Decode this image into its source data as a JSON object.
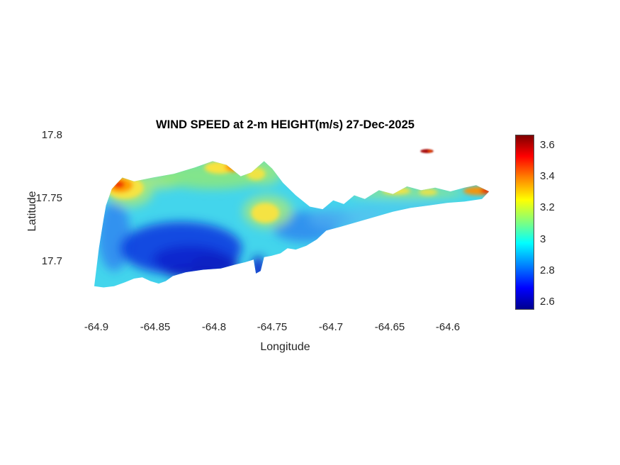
{
  "figure": {
    "background": "#ffffff"
  },
  "chart_data": {
    "type": "heatmap",
    "title": "WIND SPEED at 2-m HEIGHT(m/s) 27-Dec-2025",
    "xlabel": "Longitude",
    "ylabel": "Latitude",
    "units": "m/s",
    "grid": false,
    "xlim": [
      -64.925,
      -64.553
    ],
    "ylim": [
      17.654,
      17.8
    ],
    "xtick_labels": [
      "-64.9",
      "-64.85",
      "-64.8",
      "-64.75",
      "-64.7",
      "-64.65",
      "-64.6"
    ],
    "ytick_labels": [
      "17.8",
      "17.75",
      "17.7"
    ],
    "colorbar": {
      "colormap": "jet",
      "range": [
        2.55,
        3.67
      ],
      "ticks": [
        "3.6",
        "3.4",
        "3.2",
        "3",
        "2.8",
        "2.6"
      ],
      "gradient_stops": [
        "#7f0000 0%",
        "#ff0000 12%",
        "#ff7f00 24%",
        "#ffff00 37%",
        "#7fff7f 50%",
        "#00ffff 62%",
        "#0080ff 75%",
        "#0000ff 88%",
        "#00008f 100%"
      ]
    },
    "map": {
      "base_color": "#43d5ec",
      "base_value": 3.0,
      "island_outline": [
        [
          -64.902,
          17.68
        ],
        [
          -64.898,
          17.71
        ],
        [
          -64.894,
          17.733
        ],
        [
          -64.892,
          17.744
        ],
        [
          -64.887,
          17.757
        ],
        [
          -64.878,
          17.766
        ],
        [
          -64.868,
          17.763
        ],
        [
          -64.852,
          17.766
        ],
        [
          -64.834,
          17.769
        ],
        [
          -64.816,
          17.774
        ],
        [
          -64.801,
          17.779
        ],
        [
          -64.789,
          17.776
        ],
        [
          -64.777,
          17.767
        ],
        [
          -64.768,
          17.77
        ],
        [
          -64.757,
          17.779
        ],
        [
          -64.75,
          17.773
        ],
        [
          -64.741,
          17.762
        ],
        [
          -64.73,
          17.752
        ],
        [
          -64.718,
          17.743
        ],
        [
          -64.707,
          17.741
        ],
        [
          -64.698,
          17.748
        ],
        [
          -64.689,
          17.745
        ],
        [
          -64.68,
          17.752
        ],
        [
          -64.671,
          17.749
        ],
        [
          -64.659,
          17.756
        ],
        [
          -64.647,
          17.753
        ],
        [
          -64.635,
          17.759
        ],
        [
          -64.623,
          17.756
        ],
        [
          -64.611,
          17.758
        ],
        [
          -64.598,
          17.755
        ],
        [
          -64.586,
          17.758
        ],
        [
          -64.576,
          17.76
        ],
        [
          -64.565,
          17.755
        ],
        [
          -64.571,
          17.749
        ],
        [
          -64.586,
          17.747
        ],
        [
          -64.601,
          17.746
        ],
        [
          -64.616,
          17.744
        ],
        [
          -64.632,
          17.742
        ],
        [
          -64.647,
          17.739
        ],
        [
          -64.662,
          17.735
        ],
        [
          -64.677,
          17.731
        ],
        [
          -64.692,
          17.727
        ],
        [
          -64.704,
          17.724
        ],
        [
          -64.712,
          17.717
        ],
        [
          -64.721,
          17.712
        ],
        [
          -64.73,
          17.709
        ],
        [
          -64.737,
          17.71
        ],
        [
          -64.743,
          17.706
        ],
        [
          -64.751,
          17.704
        ],
        [
          -64.757,
          17.703
        ],
        [
          -64.76,
          17.692
        ],
        [
          -64.764,
          17.69
        ],
        [
          -64.766,
          17.701
        ],
        [
          -64.773,
          17.699
        ],
        [
          -64.782,
          17.697
        ],
        [
          -64.794,
          17.694
        ],
        [
          -64.809,
          17.693
        ],
        [
          -64.824,
          17.691
        ],
        [
          -64.835,
          17.688
        ],
        [
          -64.841,
          17.684
        ],
        [
          -64.847,
          17.682
        ],
        [
          -64.854,
          17.684
        ],
        [
          -64.861,
          17.687
        ],
        [
          -64.868,
          17.686
        ],
        [
          -64.876,
          17.683
        ],
        [
          -64.885,
          17.68
        ],
        [
          -64.894,
          17.679
        ]
      ],
      "features": [
        {
          "name": "west-coast-blue",
          "lon": -64.885,
          "lat": 17.72,
          "rx": 0.014,
          "ry": 0.028,
          "color": "#2f7bf0",
          "opacity": 0.75,
          "layer": "smooth",
          "value": 2.8
        },
        {
          "name": "low-wind-southwest",
          "lon": -64.828,
          "lat": 17.71,
          "rx": 0.052,
          "ry": 0.021,
          "color": "#0d3ce0",
          "opacity": 0.9,
          "layer": "smooth",
          "value": 2.6
        },
        {
          "name": "low-wind-core-1",
          "lon": -64.82,
          "lat": 17.701,
          "rx": 0.032,
          "ry": 0.011,
          "color": "#0927cd",
          "opacity": 0.95,
          "layer": "smooth",
          "value": 2.55
        },
        {
          "name": "low-wind-core-2",
          "lon": -64.799,
          "lat": 17.698,
          "rx": 0.02,
          "ry": 0.007,
          "color": "#0820c2",
          "opacity": 0.95,
          "layer": "smooth",
          "value": 2.55
        },
        {
          "name": "south-coast-dark",
          "lon": -64.81,
          "lat": 17.691,
          "rx": 0.032,
          "ry": 0.005,
          "color": "#0a1fc0",
          "opacity": 0.9,
          "layer": "smooth",
          "value": 2.55
        },
        {
          "name": "south-inlet-dark",
          "lon": -64.762,
          "lat": 17.693,
          "rx": 0.006,
          "ry": 0.011,
          "color": "#0b22c8",
          "opacity": 0.95,
          "layer": "smooth",
          "value": 2.55
        },
        {
          "name": "east-central-blue",
          "lon": -64.722,
          "lat": 17.727,
          "rx": 0.028,
          "ry": 0.012,
          "color": "#2f86ee",
          "opacity": 0.85,
          "layer": "smooth",
          "value": 2.75
        },
        {
          "name": "east-central-lightblue",
          "lon": -64.697,
          "lat": 17.733,
          "rx": 0.022,
          "ry": 0.008,
          "color": "#4aaaf0",
          "opacity": 0.8,
          "layer": "smooth",
          "value": 2.85
        },
        {
          "name": "south-east-lightblue",
          "lon": -64.672,
          "lat": 17.735,
          "rx": 0.016,
          "ry": 0.006,
          "color": "#55c0f0",
          "opacity": 0.8,
          "layer": "smooth",
          "value": 2.9
        },
        {
          "name": "peninsula-south-tint",
          "lon": -64.64,
          "lat": 17.742,
          "rx": 0.045,
          "ry": 0.0045,
          "color": "#4fc6ec",
          "opacity": 0.7,
          "layer": "smooth",
          "value": 2.9
        },
        {
          "name": "northwest-green",
          "lon": -64.872,
          "lat": 17.755,
          "rx": 0.02,
          "ry": 0.012,
          "color": "#a9e97b",
          "opacity": 0.85,
          "layer": "smooth",
          "value": 3.2
        },
        {
          "name": "north-band-west-green",
          "lon": -64.849,
          "lat": 17.763,
          "rx": 0.022,
          "ry": 0.006,
          "color": "#a9e97b",
          "opacity": 0.85,
          "layer": "smooth",
          "value": 3.2
        },
        {
          "name": "north-band-green",
          "lon": -64.801,
          "lat": 17.768,
          "rx": 0.046,
          "ry": 0.011,
          "color": "#8de87b",
          "opacity": 0.85,
          "layer": "smooth",
          "value": 3.1
        },
        {
          "name": "north-peak-green",
          "lon": -64.757,
          "lat": 17.771,
          "rx": 0.016,
          "ry": 0.011,
          "color": "#9ce87b",
          "opacity": 0.8,
          "layer": "smooth",
          "value": 3.1
        },
        {
          "name": "mid-island-green",
          "lon": -64.754,
          "lat": 17.739,
          "rx": 0.021,
          "ry": 0.013,
          "color": "#a9e97b",
          "opacity": 0.8,
          "layer": "smooth",
          "value": 3.15
        },
        {
          "name": "east-band-green",
          "lon": -64.635,
          "lat": 17.754,
          "rx": 0.05,
          "ry": 0.0045,
          "color": "#9fe87b",
          "opacity": 0.8,
          "layer": "smooth",
          "value": 3.1
        },
        {
          "name": "north-yellow",
          "lon": -64.795,
          "lat": 17.774,
          "rx": 0.013,
          "ry": 0.005,
          "color": "#ffe33a",
          "opacity": 0.95,
          "layer": "spot",
          "value": 3.3
        },
        {
          "name": "peak-flank-yellow",
          "lon": -64.764,
          "lat": 17.769,
          "rx": 0.008,
          "ry": 0.005,
          "color": "#ffe33a",
          "opacity": 0.85,
          "layer": "spot",
          "value": 3.3
        },
        {
          "name": "mid-island-yellow",
          "lon": -64.756,
          "lat": 17.738,
          "rx": 0.012,
          "ry": 0.008,
          "color": "#ffe33a",
          "opacity": 0.9,
          "layer": "spot",
          "value": 3.3
        },
        {
          "name": "northwest-yellow",
          "lon": -64.876,
          "lat": 17.758,
          "rx": 0.016,
          "ry": 0.009,
          "color": "#ffe33a",
          "opacity": 0.9,
          "layer": "spot",
          "value": 3.3
        },
        {
          "name": "east-yellow-1",
          "lon": -64.644,
          "lat": 17.7555,
          "rx": 0.012,
          "ry": 0.003,
          "color": "#ffe33a",
          "opacity": 0.9,
          "layer": "spot",
          "value": 3.3
        },
        {
          "name": "east-yellow-2",
          "lon": -64.617,
          "lat": 17.7545,
          "rx": 0.008,
          "ry": 0.0028,
          "color": "#ffe33a",
          "opacity": 0.8,
          "layer": "spot",
          "value": 3.25
        },
        {
          "name": "northwest-orange",
          "lon": -64.88,
          "lat": 17.76,
          "rx": 0.011,
          "ry": 0.006,
          "color": "#ff9d00",
          "opacity": 0.95,
          "layer": "spot",
          "value": 3.45
        },
        {
          "name": "north-orange",
          "lon": -64.783,
          "lat": 17.7745,
          "rx": 0.0075,
          "ry": 0.004,
          "color": "#ffa000",
          "opacity": 0.95,
          "layer": "spot",
          "value": 3.45
        },
        {
          "name": "east-tip-orange",
          "lon": -64.574,
          "lat": 17.7555,
          "rx": 0.013,
          "ry": 0.0035,
          "color": "#ff9000",
          "opacity": 0.95,
          "layer": "spot",
          "value": 3.45
        },
        {
          "name": "northwest-red",
          "lon": -64.881,
          "lat": 17.7605,
          "rx": 0.005,
          "ry": 0.003,
          "color": "#ef2c00",
          "opacity": 0.95,
          "layer": "spot",
          "value": 3.6
        },
        {
          "name": "north-red",
          "lon": -64.783,
          "lat": 17.7755,
          "rx": 0.0035,
          "ry": 0.002,
          "color": "#f23d00",
          "opacity": 0.9,
          "layer": "spot",
          "value": 3.55
        },
        {
          "name": "east-tip-red",
          "lon": -64.567,
          "lat": 17.7555,
          "rx": 0.005,
          "ry": 0.0025,
          "color": "#e82800",
          "opacity": 0.95,
          "layer": "spot",
          "value": 3.6
        }
      ],
      "islets": [
        {
          "name": "offshore-islet-red",
          "lon": -64.618,
          "lat": 17.787,
          "rx": 0.0055,
          "ry": 0.0016,
          "color": "#a81010",
          "opacity": 1,
          "value": 3.6
        },
        {
          "name": "offshore-islet-core",
          "lon": -64.6155,
          "lat": 17.787,
          "rx": 0.002,
          "ry": 0.001,
          "color": "#e03a00",
          "opacity": 1,
          "value": 3.5
        }
      ]
    }
  }
}
